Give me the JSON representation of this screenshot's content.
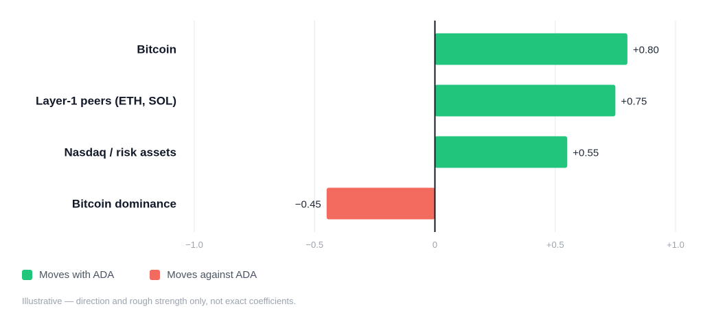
{
  "chart_data": {
    "type": "bar",
    "orientation": "horizontal",
    "categories": [
      "Bitcoin",
      "Layer-1 peers (ETH, SOL)",
      "Nasdaq / risk assets",
      "Bitcoin dominance"
    ],
    "values": [
      0.8,
      0.75,
      0.55,
      -0.45
    ],
    "value_labels": [
      "+0.80",
      "+0.75",
      "+0.55",
      "−0.45"
    ],
    "xlim": [
      -1.0,
      1.0
    ],
    "x_ticks": [
      -1.0,
      -0.5,
      0,
      0.5,
      1.0
    ],
    "x_tick_labels": [
      "−1.0",
      "−0.5",
      "0",
      "+0.5",
      "+1.0"
    ],
    "grid": true,
    "legend_placement": "bottom-left",
    "legend": [
      {
        "label": "Moves with ADA",
        "color": "#22c57c"
      },
      {
        "label": "Moves against ADA",
        "color": "#f26b5e"
      }
    ],
    "colors": {
      "positive": "#22c57c",
      "negative": "#f26b5e"
    }
  },
  "note": "Illustrative — direction and rough strength only, not exact coefficients."
}
